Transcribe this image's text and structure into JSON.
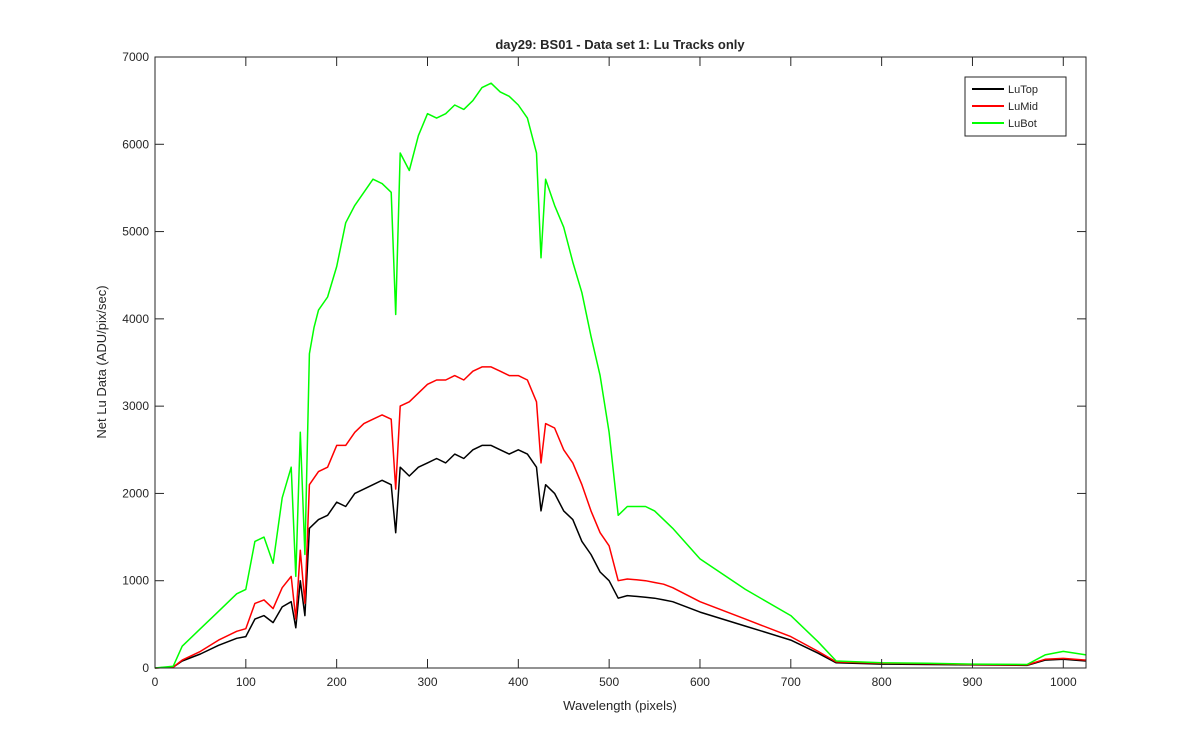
{
  "chart_data": {
    "type": "line",
    "title": "day29: BS01 - Data set 1: Lu Tracks only",
    "xlabel": "Wavelength (pixels)",
    "ylabel": "Net Lu Data (ADU/pix/sec)",
    "xlim": [
      0,
      1025
    ],
    "ylim": [
      0,
      7000
    ],
    "xticks": [
      0,
      100,
      200,
      300,
      400,
      500,
      600,
      700,
      800,
      900,
      1000
    ],
    "yticks": [
      0,
      1000,
      2000,
      3000,
      4000,
      5000,
      6000,
      7000
    ],
    "xtick_labels": [
      "0",
      "100",
      "200",
      "300",
      "400",
      "500",
      "600",
      "700",
      "800",
      "900",
      "1000"
    ],
    "ytick_labels": [
      "0",
      "1000",
      "2000",
      "3000",
      "4000",
      "5000",
      "6000",
      "7000"
    ],
    "grid": false,
    "legend_position": "top-right",
    "colors": {
      "LuTop": "#000000",
      "LuMid": "#ff0000",
      "LuBot": "#00ff00"
    },
    "series": [
      {
        "name": "LuTop",
        "x": [
          0,
          20,
          30,
          50,
          70,
          90,
          100,
          110,
          120,
          130,
          140,
          150,
          155,
          160,
          165,
          170,
          180,
          190,
          200,
          210,
          220,
          230,
          240,
          250,
          260,
          265,
          270,
          280,
          290,
          300,
          310,
          320,
          330,
          340,
          350,
          360,
          370,
          380,
          390,
          400,
          410,
          420,
          425,
          430,
          440,
          450,
          460,
          470,
          480,
          490,
          500,
          510,
          520,
          530,
          540,
          550,
          560,
          570,
          600,
          650,
          700,
          730,
          750,
          800,
          850,
          900,
          960,
          980,
          1000,
          1025
        ],
        "y": [
          0,
          10,
          80,
          160,
          260,
          340,
          360,
          560,
          600,
          520,
          700,
          760,
          460,
          1000,
          600,
          1600,
          1700,
          1750,
          1900,
          1850,
          2000,
          2050,
          2100,
          2150,
          2100,
          1550,
          2300,
          2200,
          2300,
          2350,
          2400,
          2350,
          2450,
          2400,
          2500,
          2550,
          2550,
          2500,
          2450,
          2500,
          2450,
          2300,
          1800,
          2100,
          2000,
          1800,
          1700,
          1450,
          1300,
          1100,
          1000,
          800,
          830,
          820,
          810,
          800,
          780,
          760,
          640,
          480,
          320,
          170,
          60,
          45,
          40,
          35,
          30,
          90,
          100,
          80
        ]
      },
      {
        "name": "LuMid",
        "x": [
          0,
          20,
          30,
          50,
          70,
          90,
          100,
          110,
          120,
          130,
          140,
          150,
          155,
          160,
          165,
          170,
          180,
          190,
          200,
          210,
          220,
          230,
          240,
          250,
          260,
          265,
          270,
          280,
          290,
          300,
          310,
          320,
          330,
          340,
          350,
          360,
          370,
          380,
          390,
          400,
          410,
          420,
          425,
          430,
          440,
          450,
          460,
          470,
          480,
          490,
          500,
          510,
          520,
          530,
          540,
          550,
          560,
          570,
          600,
          650,
          700,
          730,
          750,
          800,
          850,
          900,
          960,
          980,
          1000,
          1025
        ],
        "y": [
          0,
          10,
          90,
          190,
          320,
          420,
          450,
          740,
          780,
          680,
          920,
          1050,
          560,
          1350,
          740,
          2100,
          2250,
          2300,
          2550,
          2550,
          2700,
          2800,
          2850,
          2900,
          2850,
          2050,
          3000,
          3050,
          3150,
          3250,
          3300,
          3300,
          3350,
          3300,
          3400,
          3450,
          3450,
          3400,
          3350,
          3350,
          3300,
          3050,
          2350,
          2800,
          2750,
          2500,
          2350,
          2100,
          1800,
          1550,
          1400,
          1000,
          1020,
          1010,
          1000,
          980,
          960,
          920,
          760,
          560,
          360,
          190,
          70,
          55,
          50,
          40,
          35,
          100,
          110,
          90
        ]
      },
      {
        "name": "LuBot",
        "x": [
          0,
          20,
          30,
          50,
          70,
          90,
          100,
          110,
          120,
          130,
          140,
          150,
          155,
          160,
          165,
          170,
          175,
          180,
          190,
          200,
          210,
          220,
          230,
          240,
          250,
          260,
          265,
          270,
          280,
          290,
          300,
          310,
          320,
          330,
          340,
          350,
          360,
          370,
          380,
          390,
          400,
          410,
          420,
          425,
          430,
          440,
          450,
          460,
          470,
          480,
          490,
          500,
          510,
          520,
          530,
          540,
          550,
          560,
          570,
          600,
          650,
          700,
          730,
          750,
          800,
          850,
          900,
          960,
          980,
          1000,
          1025
        ],
        "y": [
          0,
          20,
          250,
          450,
          650,
          850,
          900,
          1450,
          1500,
          1200,
          1950,
          2300,
          1050,
          2700,
          1300,
          3600,
          3900,
          4100,
          4250,
          4600,
          5100,
          5300,
          5450,
          5600,
          5550,
          5450,
          4050,
          5900,
          5700,
          6100,
          6350,
          6300,
          6350,
          6450,
          6400,
          6500,
          6650,
          6700,
          6600,
          6550,
          6450,
          6300,
          5900,
          4700,
          5600,
          5300,
          5050,
          4650,
          4300,
          3800,
          3350,
          2700,
          1750,
          1850,
          1850,
          1850,
          1800,
          1700,
          1600,
          1250,
          900,
          600,
          300,
          80,
          60,
          55,
          45,
          40,
          150,
          190,
          150
        ]
      }
    ]
  }
}
